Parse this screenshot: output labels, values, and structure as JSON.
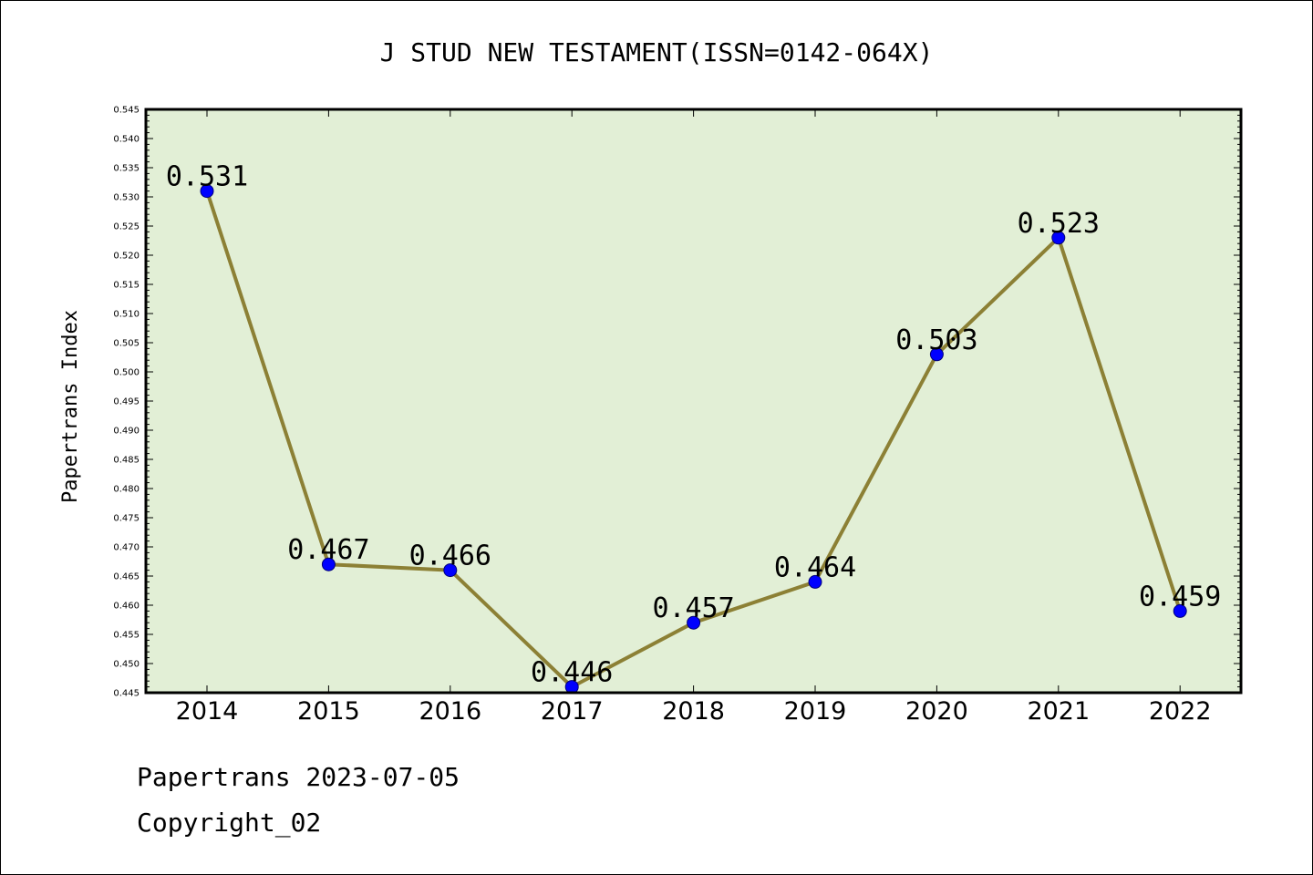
{
  "chart_data": {
    "type": "line",
    "title": "J STUD NEW TESTAMENT(ISSN=0142-064X)",
    "xlabel": "",
    "ylabel": "Papertrans Index",
    "categories": [
      "2014",
      "2015",
      "2016",
      "2017",
      "2018",
      "2019",
      "2020",
      "2021",
      "2022"
    ],
    "values": [
      0.531,
      0.467,
      0.466,
      0.446,
      0.457,
      0.464,
      0.503,
      0.523,
      0.459
    ],
    "data_labels": [
      "0.531",
      "0.467",
      "0.466",
      "0.446",
      "0.457",
      "0.464",
      "0.503",
      "0.523",
      "0.459"
    ],
    "ylim": [
      0.445,
      0.545
    ],
    "yticks": [
      "0.445",
      "0.450",
      "0.455",
      "0.460",
      "0.465",
      "0.470",
      "0.475",
      "0.480",
      "0.485",
      "0.490",
      "0.495",
      "0.500",
      "0.505",
      "0.510",
      "0.515",
      "0.520",
      "0.525",
      "0.530",
      "0.535",
      "0.540",
      "0.545"
    ],
    "grid": false,
    "plot_background": "#e2efd6",
    "line_color": "#8c8035",
    "marker_color": "#0000ff"
  },
  "footer": {
    "line1": "Papertrans 2023-07-05",
    "line2": "Copyright_02"
  }
}
